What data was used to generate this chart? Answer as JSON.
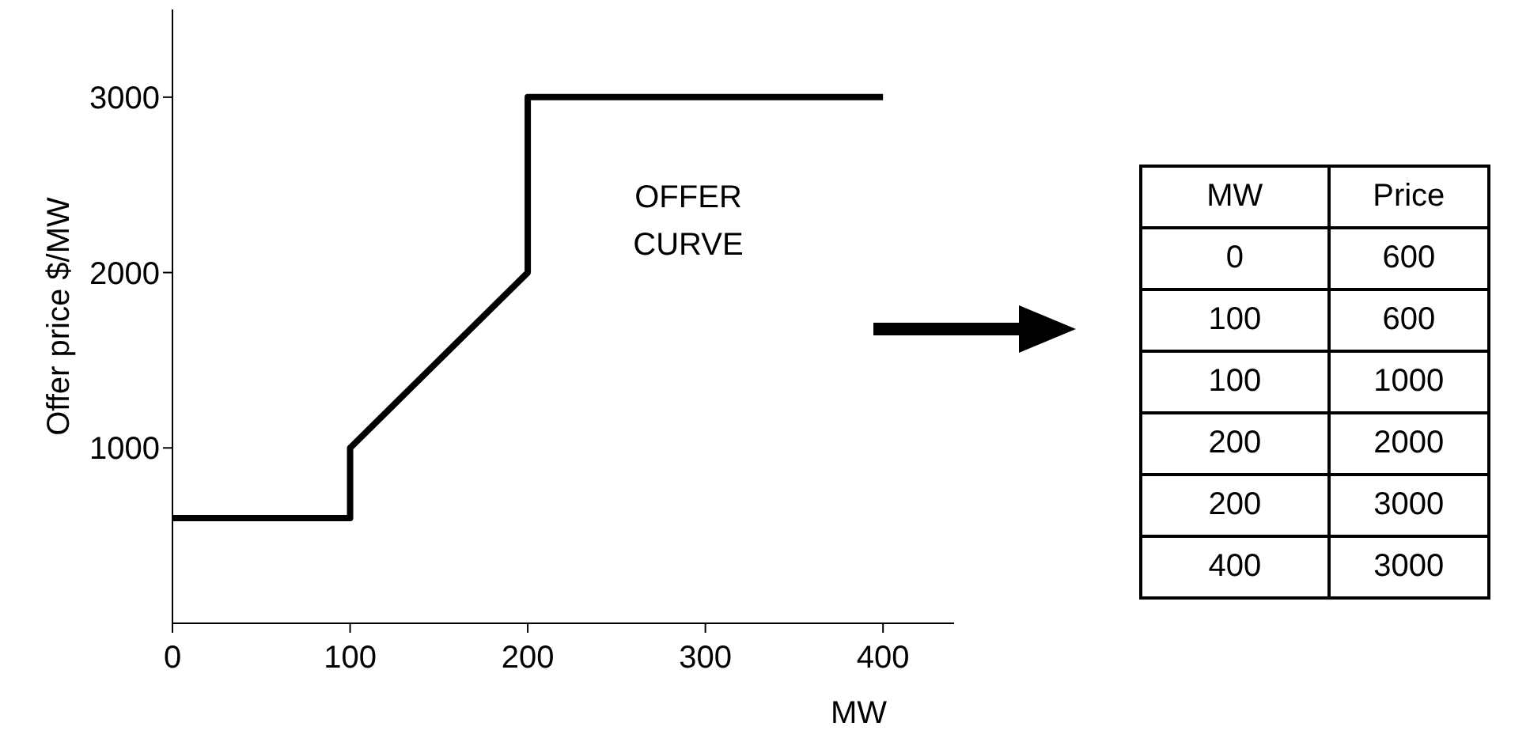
{
  "chart_data": [
    {
      "type": "line",
      "xlabel": "MW",
      "ylabel": "Offer price $/MW",
      "x": [
        0,
        100,
        100,
        200,
        200,
        400
      ],
      "series": [
        {
          "color": "#000000",
          "values": [
            600,
            600,
            1000,
            2000,
            3000,
            3000
          ]
        }
      ],
      "xlim": [
        0,
        440
      ],
      "xticks": [
        0,
        100,
        200,
        300,
        400
      ],
      "ylim": [
        0,
        3500
      ],
      "yticks": [
        1000,
        2000,
        3000
      ],
      "marker": "none",
      "line_style": "solid",
      "annotations": [
        "OFFER CURVE"
      ]
    },
    {
      "type": "other",
      "annotations": [
        "MW",
        "Price",
        "0",
        "600",
        "100",
        "600",
        "100",
        "1000",
        "200",
        "2000",
        "200",
        "3000",
        "400",
        "3000"
      ]
    }
  ]
}
